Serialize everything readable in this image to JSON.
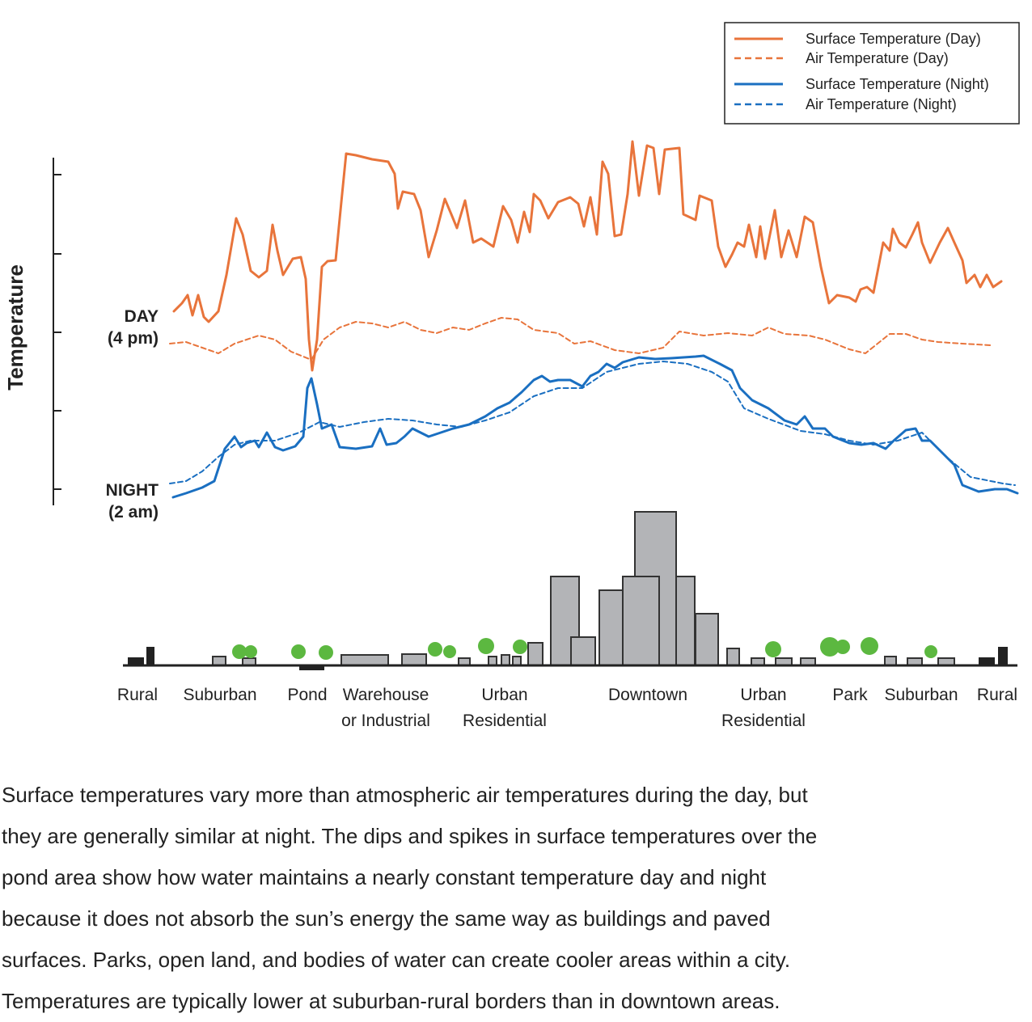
{
  "y_axis_label": "Temperature",
  "day_label": [
    "DAY",
    "(4 pm)"
  ],
  "night_label": [
    "NIGHT",
    "(2 am)"
  ],
  "legend": [
    "Surface Temperature (Day)",
    "Air Temperature  (Day)",
    "Surface Temperature (Night)",
    "Air Temperature (Night)"
  ],
  "zones": [
    [
      "Rural"
    ],
    [
      "Suburban"
    ],
    [
      "Pond"
    ],
    [
      "Warehouse",
      "or Industrial"
    ],
    [
      "Urban",
      "Residential"
    ],
    [
      "Downtown"
    ],
    [
      "Urban",
      "Residential"
    ],
    [
      "Park"
    ],
    [
      "Suburban"
    ],
    [
      "Rural"
    ]
  ],
  "caption_lines": [
    "Surface temperatures vary more than atmospheric air temperatures during the day, but",
    "they are generally similar at night. The dips and spikes in surface temperatures over the",
    "pond area show how water maintains a nearly constant temperature day and night",
    "because it does not absorb the sun’s energy the same way as buildings and paved",
    "surfaces. Parks, open land, and bodies of water can create cooler areas within a city.",
    "Temperatures are typically lower at suburban-rural borders than in downtown areas."
  ]
}
